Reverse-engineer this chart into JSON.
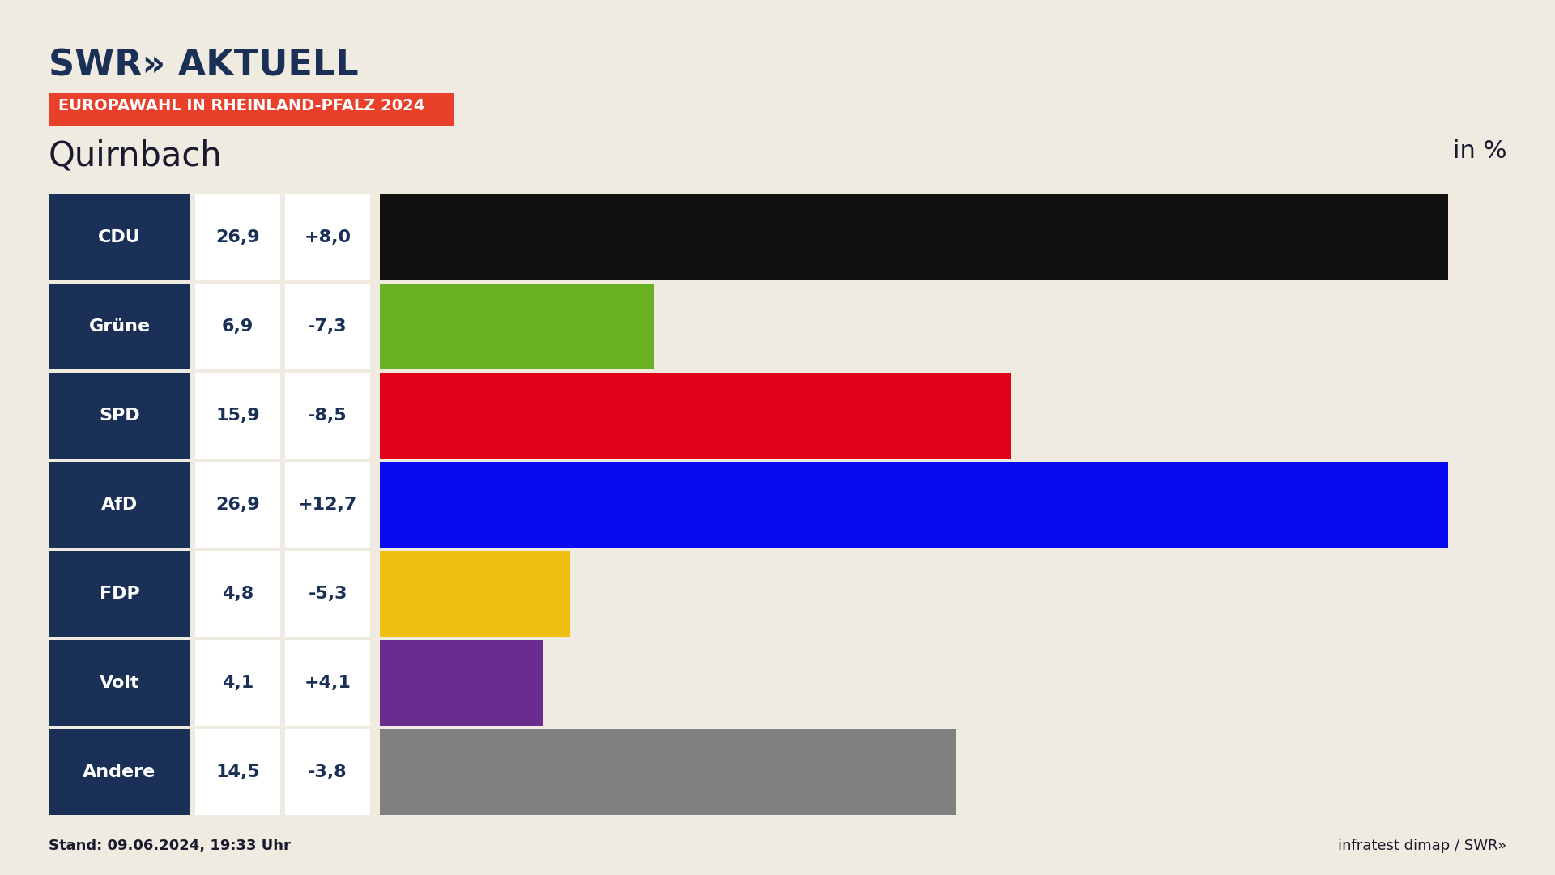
{
  "title": "Quirnbach",
  "subtitle": "EUROPAWAHL IN RHEINLAND-PFALZ 2024",
  "in_percent_label": "in %",
  "stand_label": "Stand: 09.06.2024, 19:33 Uhr",
  "footer_right": "infratest dimap / SWR»",
  "background_color": "#f0ebe0",
  "parties": [
    "CDU",
    "Grüne",
    "SPD",
    "AfD",
    "FDP",
    "Volt",
    "Andere"
  ],
  "values": [
    26.9,
    6.9,
    15.9,
    26.9,
    4.8,
    4.1,
    14.5
  ],
  "changes": [
    "+8,0",
    "-7,3",
    "-8,5",
    "+12,7",
    "-5,3",
    "+4,1",
    "-3,8"
  ],
  "bar_colors": [
    "#111111",
    "#6ab023",
    "#e2001a",
    "#0a0aee",
    "#f0c010",
    "#6a2d8f",
    "#808080"
  ],
  "label_bg_color": "#1a3057",
  "max_bar_value": 28.5,
  "subtitle_bg_color": "#e8402a",
  "title_color": "#1a1a2e",
  "stand_color": "#1a1a2e",
  "logo_color": "#1a3057"
}
